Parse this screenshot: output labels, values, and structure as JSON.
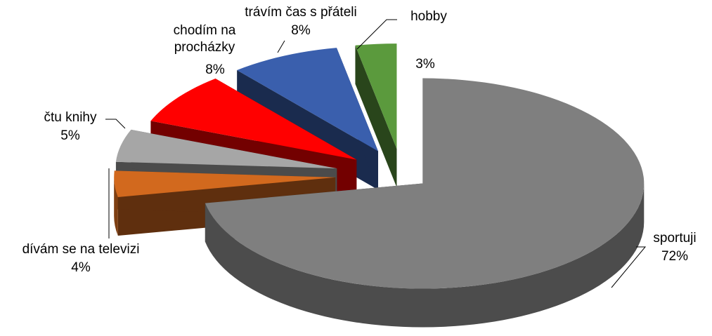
{
  "chart_data": {
    "type": "pie",
    "categories": [
      "sportuji",
      "dívám se na televizi",
      "čtu knihy",
      "chodím na procházky",
      "trávím čas s přáteli",
      "hobby"
    ],
    "values": [
      72,
      4,
      5,
      8,
      8,
      3
    ],
    "value_labels": [
      "72%",
      "4%",
      "5%",
      "8%",
      "8%",
      "3%"
    ],
    "colors": [
      "#7f7f7f",
      "#d2691e",
      "#a6a6a6",
      "#ff0000",
      "#3a5fad",
      "#5b9a3d"
    ]
  }
}
